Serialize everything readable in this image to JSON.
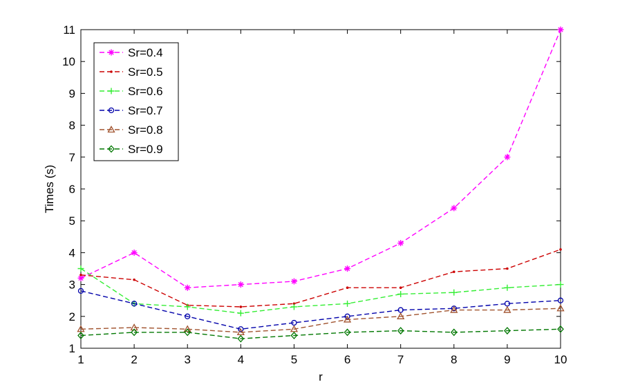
{
  "chart_data": {
    "type": "line",
    "title": "",
    "xlabel": "r",
    "ylabel": "Times (s)",
    "xlim": [
      1,
      10
    ],
    "ylim": [
      1,
      11
    ],
    "xticks": [
      "1",
      "2",
      "3",
      "4",
      "5",
      "6",
      "7",
      "8",
      "9",
      "10"
    ],
    "yticks": [
      "1",
      "2",
      "3",
      "4",
      "5",
      "6",
      "7",
      "8",
      "9",
      "10",
      "11"
    ],
    "grid": false,
    "legend_position": "top-left",
    "x": [
      1,
      2,
      3,
      4,
      5,
      6,
      7,
      8,
      9,
      10
    ],
    "series": [
      {
        "name": "Sr=0.4",
        "color": "#ff00ff",
        "marker": "star",
        "values": [
          3.2,
          4.0,
          2.9,
          3.0,
          3.1,
          3.5,
          4.3,
          5.4,
          7.0,
          11.0
        ]
      },
      {
        "name": "Sr=0.5",
        "color": "#cc0000",
        "marker": "dot",
        "values": [
          3.3,
          3.15,
          2.35,
          2.3,
          2.4,
          2.9,
          2.9,
          3.4,
          3.5,
          4.1
        ]
      },
      {
        "name": "Sr=0.6",
        "color": "#33ee33",
        "marker": "plus",
        "values": [
          3.5,
          2.4,
          2.3,
          2.1,
          2.3,
          2.4,
          2.7,
          2.75,
          2.9,
          3.0
        ]
      },
      {
        "name": "Sr=0.7",
        "color": "#0000aa",
        "marker": "circle",
        "values": [
          2.8,
          2.4,
          2.0,
          1.6,
          1.8,
          2.0,
          2.2,
          2.25,
          2.4,
          2.5
        ]
      },
      {
        "name": "Sr=0.8",
        "color": "#a0522d",
        "marker": "triangle",
        "values": [
          1.6,
          1.65,
          1.6,
          1.5,
          1.6,
          1.9,
          2.0,
          2.2,
          2.2,
          2.25
        ]
      },
      {
        "name": "Sr=0.9",
        "color": "#007700",
        "marker": "diamond",
        "values": [
          1.4,
          1.5,
          1.5,
          1.3,
          1.4,
          1.5,
          1.55,
          1.5,
          1.55,
          1.6
        ]
      }
    ]
  }
}
